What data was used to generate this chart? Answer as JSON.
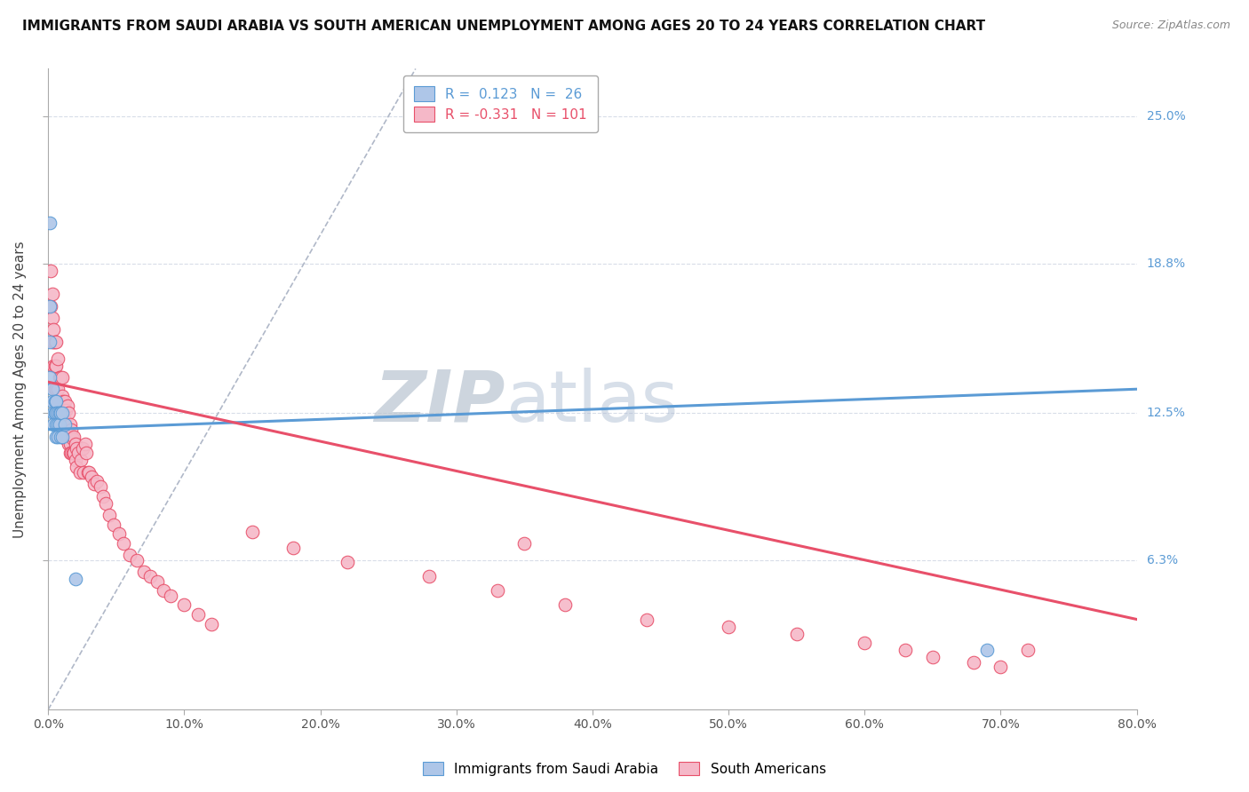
{
  "title": "IMMIGRANTS FROM SAUDI ARABIA VS SOUTH AMERICAN UNEMPLOYMENT AMONG AGES 20 TO 24 YEARS CORRELATION CHART",
  "source": "Source: ZipAtlas.com",
  "ylabel": "Unemployment Among Ages 20 to 24 years",
  "y_ticks": [
    0.063,
    0.125,
    0.188,
    0.25
  ],
  "y_tick_labels": [
    "6.3%",
    "12.5%",
    "18.8%",
    "25.0%"
  ],
  "xlim": [
    0.0,
    0.8
  ],
  "ylim": [
    0.0,
    0.27
  ],
  "legend_blue_R": "0.123",
  "legend_blue_N": "26",
  "legend_pink_R": "-0.331",
  "legend_pink_N": "101",
  "blue_color": "#aec6e8",
  "pink_color": "#f5b8c8",
  "blue_edge_color": "#5b9bd5",
  "pink_edge_color": "#e8506a",
  "diag_line_color": "#b0b8c8",
  "watermark_color": "#c8d4e8",
  "blue_scatter_x": [
    0.001,
    0.001,
    0.001,
    0.001,
    0.003,
    0.003,
    0.004,
    0.004,
    0.005,
    0.005,
    0.006,
    0.006,
    0.006,
    0.006,
    0.007,
    0.007,
    0.007,
    0.008,
    0.008,
    0.009,
    0.009,
    0.01,
    0.01,
    0.012,
    0.02,
    0.69
  ],
  "blue_scatter_y": [
    0.205,
    0.17,
    0.155,
    0.14,
    0.135,
    0.13,
    0.125,
    0.12,
    0.13,
    0.125,
    0.13,
    0.125,
    0.12,
    0.115,
    0.125,
    0.12,
    0.115,
    0.125,
    0.12,
    0.125,
    0.115,
    0.125,
    0.115,
    0.12,
    0.055,
    0.025
  ],
  "pink_scatter_x": [
    0.002,
    0.002,
    0.003,
    0.003,
    0.003,
    0.004,
    0.004,
    0.004,
    0.005,
    0.005,
    0.005,
    0.005,
    0.006,
    0.006,
    0.006,
    0.006,
    0.007,
    0.007,
    0.007,
    0.008,
    0.008,
    0.008,
    0.008,
    0.009,
    0.009,
    0.01,
    0.01,
    0.01,
    0.01,
    0.01,
    0.011,
    0.011,
    0.012,
    0.012,
    0.012,
    0.013,
    0.013,
    0.013,
    0.014,
    0.014,
    0.015,
    0.015,
    0.015,
    0.016,
    0.016,
    0.016,
    0.017,
    0.017,
    0.018,
    0.018,
    0.019,
    0.019,
    0.02,
    0.02,
    0.021,
    0.021,
    0.022,
    0.023,
    0.024,
    0.025,
    0.026,
    0.027,
    0.028,
    0.029,
    0.03,
    0.032,
    0.034,
    0.036,
    0.038,
    0.04,
    0.042,
    0.045,
    0.048,
    0.052,
    0.055,
    0.06,
    0.065,
    0.07,
    0.075,
    0.08,
    0.085,
    0.09,
    0.1,
    0.11,
    0.12,
    0.15,
    0.18,
    0.22,
    0.28,
    0.33,
    0.38,
    0.44,
    0.5,
    0.55,
    0.6,
    0.63,
    0.65,
    0.68,
    0.7,
    0.72,
    0.35
  ],
  "pink_scatter_y": [
    0.185,
    0.17,
    0.165,
    0.155,
    0.175,
    0.155,
    0.145,
    0.16,
    0.155,
    0.145,
    0.135,
    0.13,
    0.155,
    0.145,
    0.135,
    0.13,
    0.148,
    0.135,
    0.125,
    0.14,
    0.13,
    0.125,
    0.12,
    0.14,
    0.125,
    0.14,
    0.132,
    0.125,
    0.12,
    0.115,
    0.13,
    0.12,
    0.13,
    0.122,
    0.115,
    0.126,
    0.118,
    0.114,
    0.128,
    0.118,
    0.125,
    0.118,
    0.112,
    0.12,
    0.112,
    0.108,
    0.118,
    0.108,
    0.114,
    0.108,
    0.115,
    0.108,
    0.112,
    0.105,
    0.11,
    0.102,
    0.108,
    0.1,
    0.105,
    0.11,
    0.1,
    0.112,
    0.108,
    0.1,
    0.1,
    0.098,
    0.095,
    0.096,
    0.094,
    0.09,
    0.087,
    0.082,
    0.078,
    0.074,
    0.07,
    0.065,
    0.063,
    0.058,
    0.056,
    0.054,
    0.05,
    0.048,
    0.044,
    0.04,
    0.036,
    0.075,
    0.068,
    0.062,
    0.056,
    0.05,
    0.044,
    0.038,
    0.035,
    0.032,
    0.028,
    0.025,
    0.022,
    0.02,
    0.018,
    0.025,
    0.07
  ],
  "blue_line_x": [
    0.0,
    0.8
  ],
  "blue_line_y": [
    0.118,
    0.135
  ],
  "pink_line_x": [
    0.0,
    0.8
  ],
  "pink_line_y": [
    0.138,
    0.038
  ],
  "diag_line_x": [
    0.0,
    0.27
  ],
  "diag_line_y": [
    0.0,
    0.27
  ],
  "x_ticks": [
    0.0,
    0.1,
    0.2,
    0.3,
    0.4,
    0.5,
    0.6,
    0.7,
    0.8
  ],
  "x_tick_labels": [
    "0.0%",
    "10.0%",
    "20.0%",
    "30.0%",
    "40.0%",
    "50.0%",
    "60.0%",
    "70.0%",
    "80.0%"
  ]
}
